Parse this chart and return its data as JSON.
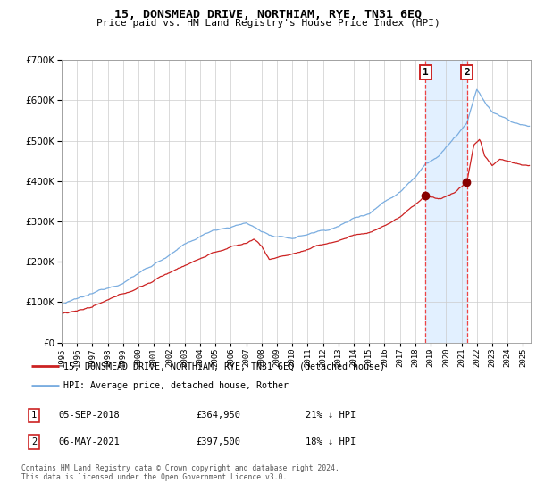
{
  "title": "15, DONSMEAD DRIVE, NORTHIAM, RYE, TN31 6EQ",
  "subtitle": "Price paid vs. HM Land Registry's House Price Index (HPI)",
  "legend_line1": "15, DONSMEAD DRIVE, NORTHIAM, RYE, TN31 6EQ (detached house)",
  "legend_line2": "HPI: Average price, detached house, Rother",
  "annotation1_label": "1",
  "annotation1_date": "05-SEP-2018",
  "annotation1_price": "£364,950",
  "annotation1_hpi": "21% ↓ HPI",
  "annotation2_label": "2",
  "annotation2_date": "06-MAY-2021",
  "annotation2_price": "£397,500",
  "annotation2_hpi": "18% ↓ HPI",
  "footer": "Contains HM Land Registry data © Crown copyright and database right 2024.\nThis data is licensed under the Open Government Licence v3.0.",
  "hpi_color": "#7aade0",
  "price_color": "#cc2222",
  "marker_color": "#880000",
  "vline_color": "#ee4444",
  "shading_color": "#ddeeff",
  "grid_color": "#cccccc",
  "background_color": "#ffffff",
  "annotation_box_color": "#cc2222",
  "ylim": [
    0,
    700000
  ],
  "sale1_year": 2018.67,
  "sale2_year": 2021.35,
  "sale1_price": 364950,
  "sale2_price": 397500
}
